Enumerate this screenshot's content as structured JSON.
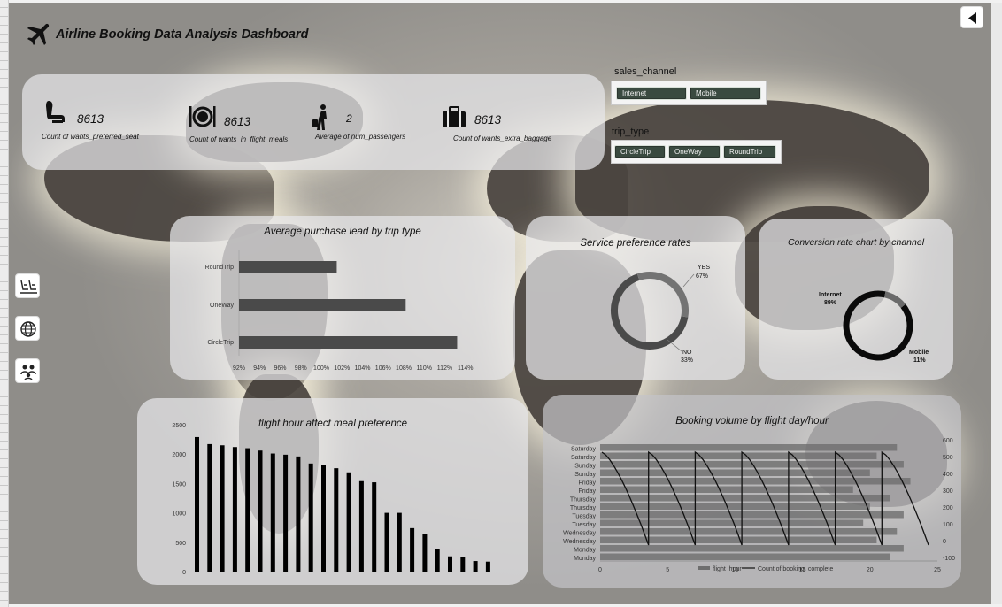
{
  "title": "Airline Booking Data Analysis Dashboard",
  "kpis": [
    {
      "icon": "seat-icon",
      "value": "8613",
      "label": "Count of wants_preferred_seat"
    },
    {
      "icon": "meal-icon",
      "value": "8613",
      "label": "Count of wants_in_flight_meals"
    },
    {
      "icon": "passenger-icon",
      "value": "2",
      "label": "Average of num_passengers"
    },
    {
      "icon": "baggage-icon",
      "value": "8613",
      "label": "Count of wants_extra_baggage"
    }
  ],
  "slicers": {
    "sales_channel": {
      "title": "sales_channel",
      "options": [
        "Internet",
        "Mobile"
      ]
    },
    "trip_type": {
      "title": "trip_type",
      "options": [
        "CircleTrip",
        "OneWay",
        "RoundTrip"
      ]
    }
  },
  "nav": {
    "back_icon": "back-arrow-icon",
    "side_icons": [
      "seats-nav-icon",
      "globe-nav-icon",
      "people-nav-icon"
    ]
  },
  "charts": {
    "lead": {
      "title": "Average purchase lead by trip type"
    },
    "service": {
      "title": "Service preference rates"
    },
    "conversion": {
      "title": "Conversion rate chart by channel"
    },
    "meal": {
      "title": "flight hour affect meal preference"
    },
    "volume": {
      "title": "Booking volume by flight day/hour"
    }
  },
  "chart_data": [
    {
      "type": "bar",
      "orientation": "horizontal",
      "title": "Average purchase lead by trip type",
      "categories": [
        "RoundTrip",
        "OneWay",
        "CircleTrip"
      ],
      "values": [
        101.5,
        108.2,
        113.2
      ],
      "xlim": [
        92,
        116
      ],
      "xticks": [
        "92%",
        "94%",
        "96%",
        "98%",
        "100%",
        "102%",
        "104%",
        "106%",
        "108%",
        "110%",
        "112%",
        "114%"
      ],
      "color": "#4a4a4a"
    },
    {
      "type": "pie",
      "donut": true,
      "title": "Service preference rates",
      "slices": [
        {
          "label": "YES",
          "value": 67,
          "display": "67%",
          "color": "#4a4a4a"
        },
        {
          "label": "NO",
          "value": 33,
          "display": "33%",
          "color": "#737373"
        }
      ]
    },
    {
      "type": "pie",
      "donut": true,
      "title": "Conversion rate chart by channel",
      "slices": [
        {
          "label": "Internet",
          "value": 89,
          "display": "89%",
          "color": "#0a0a0a"
        },
        {
          "label": "Mobile",
          "value": 11,
          "display": "11%",
          "color": "#6a6a6a"
        }
      ]
    },
    {
      "type": "bar",
      "title": "flight hour affect meal preference",
      "values": [
        2290,
        2170,
        2150,
        2120,
        2100,
        2060,
        2010,
        1990,
        1960,
        1840,
        1810,
        1760,
        1690,
        1540,
        1520,
        1000,
        1000,
        740,
        640,
        390,
        260,
        250,
        180,
        170
      ],
      "ylim": [
        0,
        2500
      ],
      "yticks": [
        "0",
        "500",
        "1000",
        "1500",
        "2000",
        "2500"
      ],
      "color": "#000000"
    },
    {
      "type": "line",
      "title": "Booking volume by flight day/hour",
      "categories": [
        "Saturday",
        "Saturday",
        "Sunday",
        "Sunday",
        "Friday",
        "Friday",
        "Thursday",
        "Thursday",
        "Tuesday",
        "Tuesday",
        "Wednesday",
        "Wednesday",
        "Monday",
        "Monday"
      ],
      "xlim": [
        0,
        25
      ],
      "xticks": [
        "0",
        "5",
        "10",
        "15",
        "20",
        "25"
      ],
      "y2ticks": [
        "600",
        "500",
        "400",
        "300",
        "200",
        "100",
        "0",
        "-100"
      ],
      "series": [
        {
          "name": "flight_hour"
        },
        {
          "name": "Count of booking_complete"
        }
      ]
    }
  ]
}
